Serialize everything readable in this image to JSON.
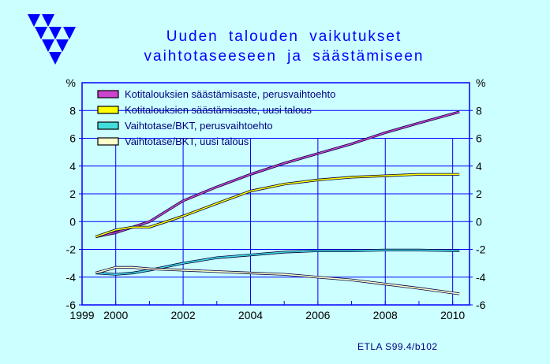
{
  "header": {
    "title_line_1": "Uuden talouden vaikutukset",
    "title_line_2": "vaihtotaseeseen ja säästämiseen"
  },
  "source_note": "ETLA S99.4/b102",
  "colors": {
    "background": "#ccffff",
    "plot_background": "#ccffff",
    "axis": "#0000ff",
    "grid": "#0000ff",
    "title": "#0000ff",
    "logo": "#0000ff"
  },
  "chart_data": {
    "type": "line",
    "title": "Uuden talouden vaikutukset vaihtotaseeseen ja säästämiseen",
    "ylabel_left": "%",
    "ylabel_right": "%",
    "xlabel": "",
    "xlim": [
      1999,
      2010.5
    ],
    "ylim": [
      -6,
      10
    ],
    "x_tick_labels": [
      "1999",
      "2000",
      "2002",
      "2004",
      "2006",
      "2008",
      "2010"
    ],
    "x_tick_values": [
      1999,
      2000,
      2002,
      2004,
      2006,
      2008,
      2010
    ],
    "y_tick_labels": [
      "-6",
      "-4",
      "-2",
      "0",
      "2",
      "4",
      "6",
      "8"
    ],
    "y_tick_values": [
      -6,
      -4,
      -2,
      0,
      2,
      4,
      6,
      8
    ],
    "grid": true,
    "legend_position": "top-left",
    "series": [
      {
        "name": "Kotitalouksien säästämisaste, perusvaihtoehto",
        "color": "#cc44cc",
        "x": [
          1999.4,
          2000,
          2000.5,
          2001,
          2002,
          2003,
          2004,
          2005,
          2006,
          2007,
          2008,
          2009,
          2010.2
        ],
        "values": [
          -1.1,
          -0.8,
          -0.4,
          0.0,
          1.5,
          2.5,
          3.4,
          4.2,
          4.9,
          5.6,
          6.4,
          7.1,
          7.9
        ]
      },
      {
        "name": "Kotitalouksien säästämisaste, uusi talous",
        "color": "#ffff00",
        "x": [
          1999.4,
          2000,
          2000.5,
          2001,
          2002,
          2003,
          2004,
          2005,
          2006,
          2007,
          2008,
          2009,
          2010.2
        ],
        "values": [
          -1.1,
          -0.6,
          -0.4,
          -0.4,
          0.4,
          1.3,
          2.2,
          2.7,
          3.0,
          3.2,
          3.3,
          3.4,
          3.4
        ]
      },
      {
        "name": "Vaihtotase/BKT, perusvaihtoehto",
        "color": "#44dddd",
        "x": [
          1999.4,
          2000,
          2000.5,
          2001,
          2002,
          2003,
          2004,
          2005,
          2006,
          2007,
          2008,
          2009,
          2010.2
        ],
        "values": [
          -3.7,
          -3.8,
          -3.7,
          -3.5,
          -3.0,
          -2.6,
          -2.4,
          -2.2,
          -2.1,
          -2.1,
          -2.05,
          -2.05,
          -2.1
        ]
      },
      {
        "name": "Vaihtotase/BKT, uusi talous",
        "color": "#ffffcc",
        "x": [
          1999.4,
          2000,
          2000.5,
          2001,
          2002,
          2003,
          2004,
          2005,
          2006,
          2007,
          2008,
          2009,
          2010.2
        ],
        "values": [
          -3.7,
          -3.3,
          -3.3,
          -3.4,
          -3.5,
          -3.6,
          -3.7,
          -3.8,
          -4.0,
          -4.2,
          -4.5,
          -4.8,
          -5.2
        ]
      }
    ]
  }
}
